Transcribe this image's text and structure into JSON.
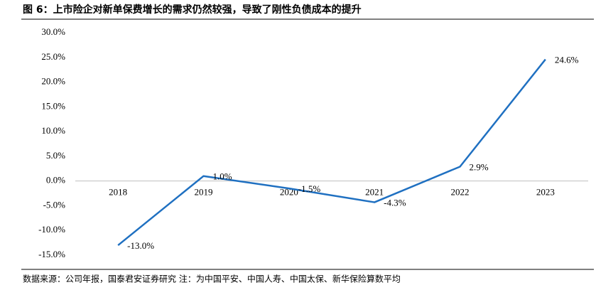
{
  "chart_data": {
    "type": "line",
    "title": "图 6：上市险企对新单保费增长的需求仍然较强，导致了刚性负债成本的提升",
    "source": "数据来源：公司年报，国泰君安证券研究  注：为中国平安、中国人寿、中国太保、新华保险算数平均",
    "categories": [
      "2018",
      "2019",
      "2020",
      "2021",
      "2022",
      "2023"
    ],
    "values": [
      -13.0,
      1.0,
      -1.5,
      -4.3,
      2.9,
      24.6
    ],
    "value_labels": [
      "-13.0%",
      "1.0%",
      "-1.5%",
      "-4.3%",
      "2.9%",
      "24.6%"
    ],
    "color": "#1f70c1",
    "ylim": [
      -15,
      30
    ],
    "yticks": [
      {
        "value": -15,
        "label": "-15.0%"
      },
      {
        "value": -10,
        "label": "-10.0%"
      },
      {
        "value": -5,
        "label": "-5.0%"
      },
      {
        "value": 0,
        "label": "0.0%"
      },
      {
        "value": 5,
        "label": "5.0%"
      },
      {
        "value": 10,
        "label": "10.0%"
      },
      {
        "value": 15,
        "label": "15.0%"
      },
      {
        "value": 20,
        "label": "20.0%"
      },
      {
        "value": 25,
        "label": "25.0%"
      },
      {
        "value": 30,
        "label": "30.0%"
      }
    ],
    "grid": false
  }
}
